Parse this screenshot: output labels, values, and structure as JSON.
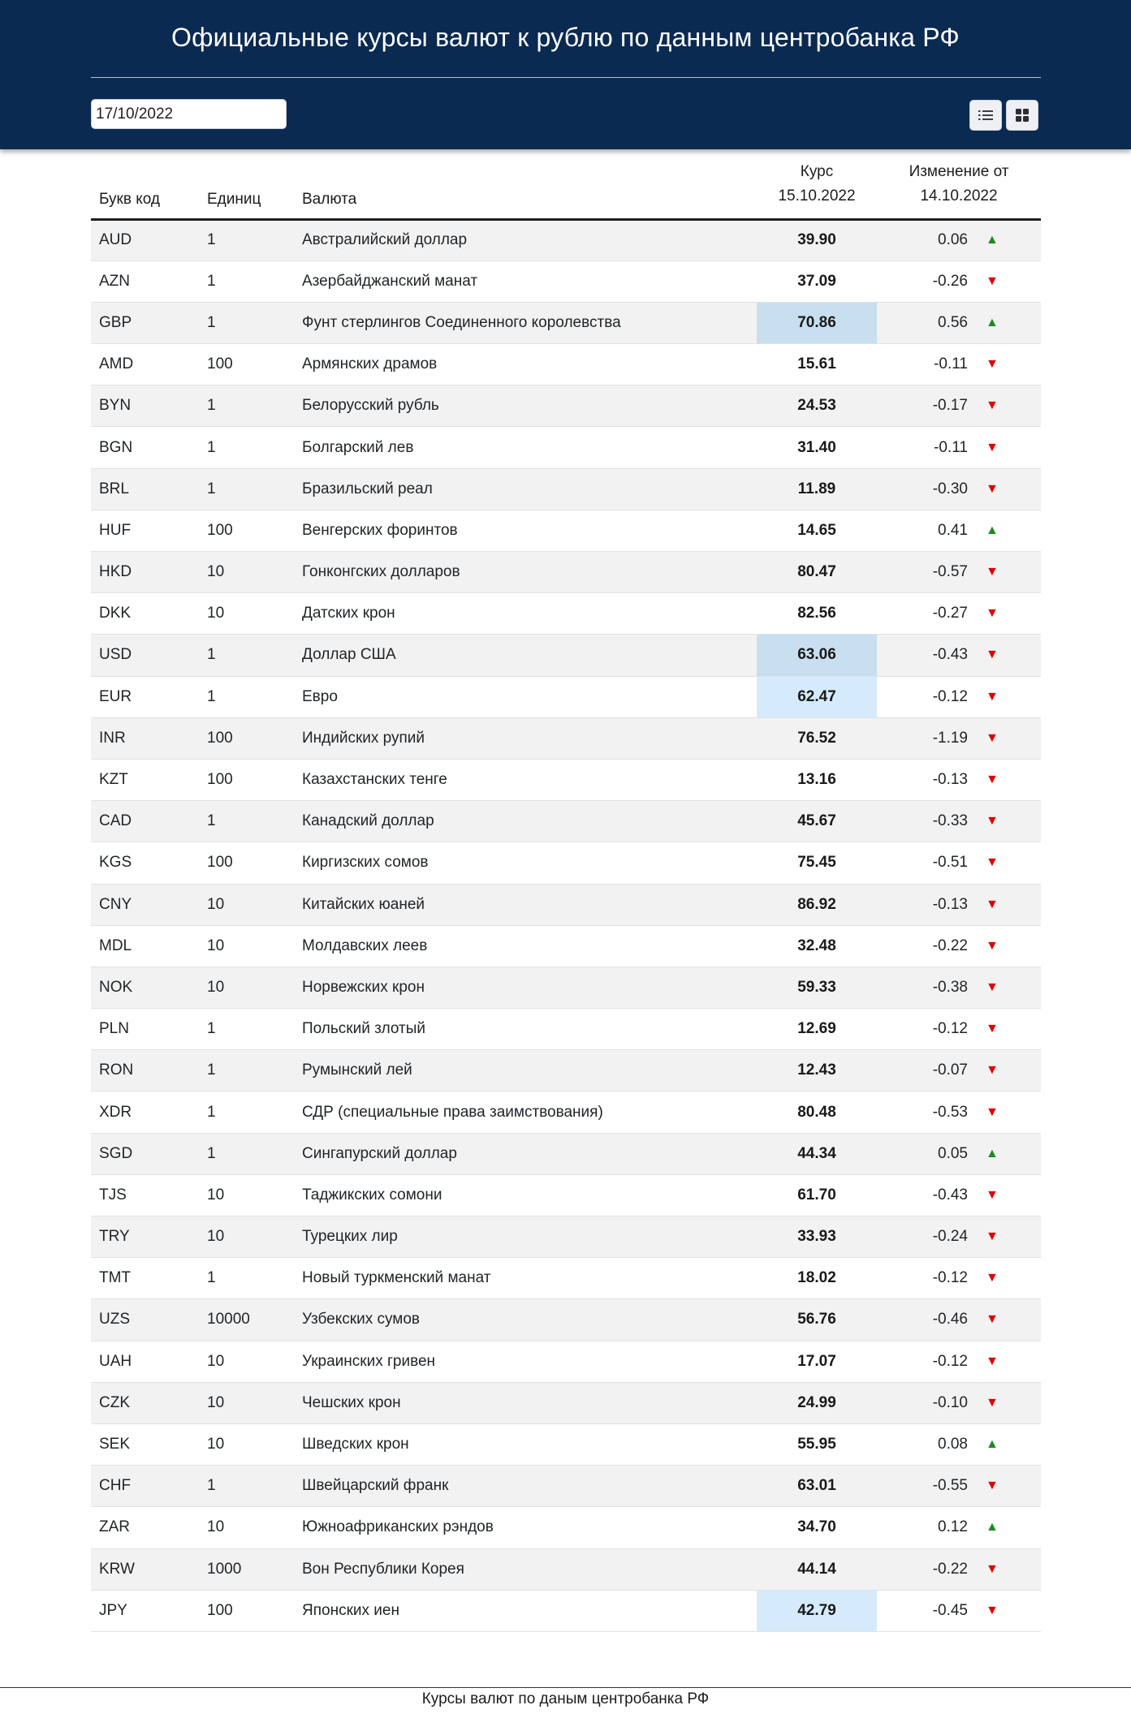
{
  "header": {
    "title": "Официальные курсы валют к рублю по данным центробанка РФ",
    "date_value": "17/10/2022",
    "list_view_icon": "list-icon",
    "grid_view_icon": "grid-icon"
  },
  "table": {
    "headers": {
      "code": "Букв код",
      "units": "Единиц",
      "name": "Валюта",
      "rate_label": "Курс",
      "rate_date": "15.10.2022",
      "change_label": "Изменение от",
      "change_date": "14.10.2022"
    },
    "colors": {
      "up": "#1f8b1f",
      "down": "#e00000",
      "highlight": "#c8dff0",
      "highlight_light": "#d5ebfb"
    },
    "rows": [
      {
        "code": "AUD",
        "units": "1",
        "name": "Австралийский доллар",
        "rate": "39.90",
        "change": "0.06",
        "dir": "up",
        "hl": ""
      },
      {
        "code": "AZN",
        "units": "1",
        "name": "Азербайджанский манат",
        "rate": "37.09",
        "change": "-0.26",
        "dir": "down",
        "hl": ""
      },
      {
        "code": "GBP",
        "units": "1",
        "name": "Фунт стерлингов Соединенного королевства",
        "rate": "70.86",
        "change": "0.56",
        "dir": "up",
        "hl": "mid"
      },
      {
        "code": "AMD",
        "units": "100",
        "name": "Армянских драмов",
        "rate": "15.61",
        "change": "-0.11",
        "dir": "down",
        "hl": ""
      },
      {
        "code": "BYN",
        "units": "1",
        "name": "Белорусский рубль",
        "rate": "24.53",
        "change": "-0.17",
        "dir": "down",
        "hl": ""
      },
      {
        "code": "BGN",
        "units": "1",
        "name": "Болгарский лев",
        "rate": "31.40",
        "change": "-0.11",
        "dir": "down",
        "hl": ""
      },
      {
        "code": "BRL",
        "units": "1",
        "name": "Бразильский реал",
        "rate": "11.89",
        "change": "-0.30",
        "dir": "down",
        "hl": ""
      },
      {
        "code": "HUF",
        "units": "100",
        "name": "Венгерских форинтов",
        "rate": "14.65",
        "change": "0.41",
        "dir": "up",
        "hl": ""
      },
      {
        "code": "HKD",
        "units": "10",
        "name": "Гонконгских долларов",
        "rate": "80.47",
        "change": "-0.57",
        "dir": "down",
        "hl": ""
      },
      {
        "code": "DKK",
        "units": "10",
        "name": "Датских крон",
        "rate": "82.56",
        "change": "-0.27",
        "dir": "down",
        "hl": ""
      },
      {
        "code": "USD",
        "units": "1",
        "name": "Доллар США",
        "rate": "63.06",
        "change": "-0.43",
        "dir": "down",
        "hl": "mid"
      },
      {
        "code": "EUR",
        "units": "1",
        "name": "Евро",
        "rate": "62.47",
        "change": "-0.12",
        "dir": "down",
        "hl": "light"
      },
      {
        "code": "INR",
        "units": "100",
        "name": "Индийских рупий",
        "rate": "76.52",
        "change": "-1.19",
        "dir": "down",
        "hl": ""
      },
      {
        "code": "KZT",
        "units": "100",
        "name": "Казахстанских тенге",
        "rate": "13.16",
        "change": "-0.13",
        "dir": "down",
        "hl": ""
      },
      {
        "code": "CAD",
        "units": "1",
        "name": "Канадский доллар",
        "rate": "45.67",
        "change": "-0.33",
        "dir": "down",
        "hl": ""
      },
      {
        "code": "KGS",
        "units": "100",
        "name": "Киргизских сомов",
        "rate": "75.45",
        "change": "-0.51",
        "dir": "down",
        "hl": ""
      },
      {
        "code": "CNY",
        "units": "10",
        "name": "Китайских юаней",
        "rate": "86.92",
        "change": "-0.13",
        "dir": "down",
        "hl": ""
      },
      {
        "code": "MDL",
        "units": "10",
        "name": "Молдавских леев",
        "rate": "32.48",
        "change": "-0.22",
        "dir": "down",
        "hl": ""
      },
      {
        "code": "NOK",
        "units": "10",
        "name": "Норвежских крон",
        "rate": "59.33",
        "change": "-0.38",
        "dir": "down",
        "hl": ""
      },
      {
        "code": "PLN",
        "units": "1",
        "name": "Польский злотый",
        "rate": "12.69",
        "change": "-0.12",
        "dir": "down",
        "hl": ""
      },
      {
        "code": "RON",
        "units": "1",
        "name": "Румынский лей",
        "rate": "12.43",
        "change": "-0.07",
        "dir": "down",
        "hl": ""
      },
      {
        "code": "XDR",
        "units": "1",
        "name": "СДР (специальные права заимствования)",
        "rate": "80.48",
        "change": "-0.53",
        "dir": "down",
        "hl": ""
      },
      {
        "code": "SGD",
        "units": "1",
        "name": "Сингапурский доллар",
        "rate": "44.34",
        "change": "0.05",
        "dir": "up",
        "hl": ""
      },
      {
        "code": "TJS",
        "units": "10",
        "name": "Таджикских сомони",
        "rate": "61.70",
        "change": "-0.43",
        "dir": "down",
        "hl": ""
      },
      {
        "code": "TRY",
        "units": "10",
        "name": "Турецких лир",
        "rate": "33.93",
        "change": "-0.24",
        "dir": "down",
        "hl": ""
      },
      {
        "code": "TMT",
        "units": "1",
        "name": "Новый туркменский манат",
        "rate": "18.02",
        "change": "-0.12",
        "dir": "down",
        "hl": ""
      },
      {
        "code": "UZS",
        "units": "10000",
        "name": "Узбекских сумов",
        "rate": "56.76",
        "change": "-0.46",
        "dir": "down",
        "hl": ""
      },
      {
        "code": "UAH",
        "units": "10",
        "name": "Украинских гривен",
        "rate": "17.07",
        "change": "-0.12",
        "dir": "down",
        "hl": ""
      },
      {
        "code": "CZK",
        "units": "10",
        "name": "Чешских крон",
        "rate": "24.99",
        "change": "-0.10",
        "dir": "down",
        "hl": ""
      },
      {
        "code": "SEK",
        "units": "10",
        "name": "Шведских крон",
        "rate": "55.95",
        "change": "0.08",
        "dir": "up",
        "hl": ""
      },
      {
        "code": "CHF",
        "units": "1",
        "name": "Швейцарский франк",
        "rate": "63.01",
        "change": "-0.55",
        "dir": "down",
        "hl": ""
      },
      {
        "code": "ZAR",
        "units": "10",
        "name": "Южноафриканских рэндов",
        "rate": "34.70",
        "change": "0.12",
        "dir": "up",
        "hl": ""
      },
      {
        "code": "KRW",
        "units": "1000",
        "name": "Вон Республики Корея",
        "rate": "44.14",
        "change": "-0.22",
        "dir": "down",
        "hl": ""
      },
      {
        "code": "JPY",
        "units": "100",
        "name": "Японских иен",
        "rate": "42.79",
        "change": "-0.45",
        "dir": "down",
        "hl": "light"
      }
    ]
  },
  "footer": {
    "text": "Курсы валют по даным центробанка РФ"
  }
}
